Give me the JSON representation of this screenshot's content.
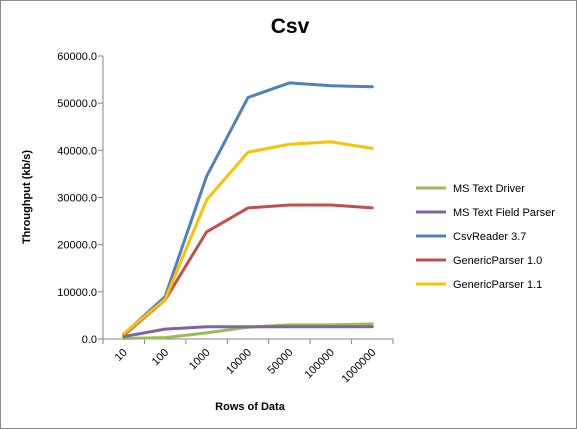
{
  "chart_data": {
    "type": "line",
    "title": "Csv",
    "xlabel": "Rows of Data",
    "ylabel": "Throughput (kb/s)",
    "categories": [
      "10",
      "100",
      "1000",
      "10000",
      "50000",
      "100000",
      "1000000"
    ],
    "ylim": [
      0,
      60000
    ],
    "yticks": [
      "0.0",
      "10000.0",
      "20000.0",
      "30000.0",
      "40000.0",
      "50000.0",
      "60000.0"
    ],
    "grid": false,
    "legend_position": "right",
    "series": [
      {
        "name": "MS Text Driver",
        "color": "#9bbb59",
        "values": [
          100,
          300,
          1300,
          2500,
          3000,
          3000,
          3200
        ]
      },
      {
        "name": "MS Text Field Parser",
        "color": "#8064a2",
        "values": [
          500,
          2100,
          2600,
          2600,
          2600,
          2600,
          2600
        ]
      },
      {
        "name": "CsvReader 3.7",
        "color": "#4f81bd",
        "values": [
          1000,
          9000,
          34500,
          51200,
          54300,
          53700,
          53500
        ]
      },
      {
        "name": "GenericParser 1.0",
        "color": "#c0504d",
        "values": [
          800,
          8300,
          22700,
          27800,
          28400,
          28400,
          27800
        ]
      },
      {
        "name": "GenericParser 1.1",
        "color": "#ffc000",
        "values": [
          1100,
          8400,
          29500,
          39600,
          41300,
          41800,
          40400
        ]
      }
    ]
  }
}
